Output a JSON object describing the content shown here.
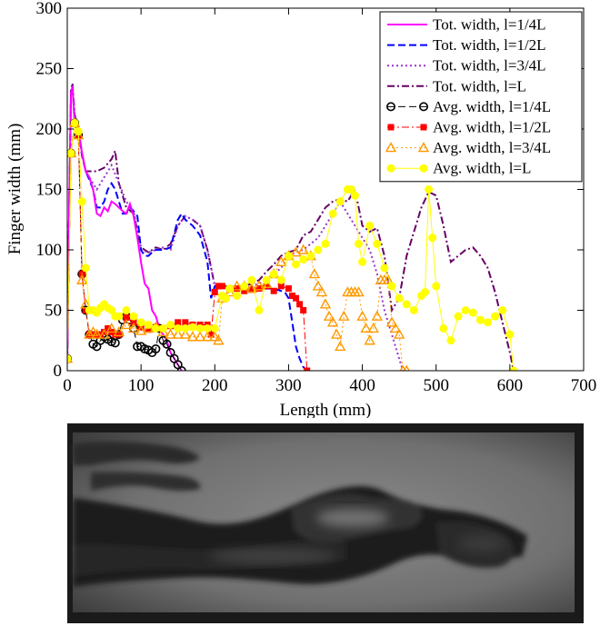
{
  "chart_data": {
    "type": "line",
    "xlabel": "Length (mm)",
    "ylabel": "Finger width (mm)",
    "xlim": [
      0,
      700
    ],
    "ylim": [
      0,
      300
    ],
    "xticks": [
      0,
      100,
      200,
      300,
      400,
      500,
      600,
      700
    ],
    "yticks": [
      0,
      50,
      100,
      150,
      200,
      250,
      300
    ],
    "grid": false,
    "legend": "top-right",
    "series": [
      {
        "name": "Tot. width, l=1/4L",
        "color": "#ff00ff",
        "dash": "solid",
        "marker": "none",
        "x": [
          0,
          3,
          5,
          7,
          10,
          15,
          20,
          25,
          30,
          35,
          40,
          45,
          50,
          55,
          60,
          65,
          70,
          75,
          80,
          85,
          90,
          95,
          100,
          105,
          110,
          115,
          120,
          125,
          130,
          135,
          140,
          145,
          150,
          155
        ],
        "y": [
          10,
          150,
          230,
          235,
          205,
          200,
          180,
          165,
          160,
          150,
          130,
          128,
          135,
          132,
          140,
          138,
          135,
          132,
          130,
          138,
          128,
          110,
          90,
          72,
          68,
          50,
          45,
          35,
          30,
          25,
          15,
          10,
          5,
          0
        ]
      },
      {
        "name": "Tot. width, l=1/2L",
        "color": "#0000ff",
        "dash": "dashed",
        "marker": "none",
        "x": [
          0,
          3,
          5,
          7,
          10,
          15,
          20,
          25,
          30,
          35,
          40,
          45,
          50,
          55,
          60,
          65,
          70,
          75,
          80,
          85,
          90,
          95,
          100,
          105,
          110,
          115,
          120,
          130,
          140,
          150,
          155,
          160,
          170,
          180,
          190,
          195,
          200,
          205,
          210,
          220,
          240,
          260,
          280,
          295,
          300,
          305,
          310,
          315,
          320,
          325
        ],
        "y": [
          10,
          150,
          230,
          235,
          208,
          198,
          178,
          165,
          158,
          150,
          135,
          135,
          140,
          150,
          155,
          150,
          140,
          130,
          130,
          135,
          132,
          128,
          100,
          95,
          95,
          98,
          100,
          100,
          102,
          125,
          130,
          125,
          120,
          112,
          90,
          60,
          70,
          70,
          70,
          68,
          68,
          68,
          68,
          65,
          60,
          40,
          20,
          10,
          3,
          0
        ]
      },
      {
        "name": "Tot. width, l=3/4L",
        "color": "#9933cc",
        "dash": "dotted",
        "marker": "none",
        "x": [
          0,
          3,
          5,
          7,
          10,
          15,
          20,
          25,
          30,
          40,
          50,
          60,
          70,
          80,
          90,
          100,
          110,
          120,
          130,
          140,
          150,
          160,
          170,
          180,
          190,
          200,
          210,
          220,
          230,
          240,
          250,
          260,
          270,
          280,
          290,
          300,
          310,
          320,
          330,
          340,
          350,
          360,
          370,
          380,
          390,
          400,
          410,
          420,
          430,
          440,
          450,
          455
        ],
        "y": [
          10,
          150,
          230,
          236,
          210,
          200,
          180,
          165,
          160,
          150,
          160,
          170,
          155,
          140,
          132,
          100,
          98,
          100,
          102,
          100,
          120,
          128,
          125,
          120,
          100,
          70,
          70,
          68,
          68,
          68,
          70,
          72,
          75,
          80,
          85,
          95,
          98,
          100,
          105,
          110,
          120,
          130,
          140,
          130,
          120,
          110,
          100,
          80,
          50,
          30,
          10,
          0
        ]
      },
      {
        "name": "Tot. width, l=L",
        "color": "#660066",
        "dash": "dashdot",
        "marker": "none",
        "x": [
          0,
          3,
          5,
          7,
          10,
          15,
          20,
          25,
          30,
          40,
          50,
          60,
          65,
          70,
          80,
          90,
          100,
          110,
          120,
          130,
          140,
          150,
          160,
          170,
          180,
          190,
          200,
          210,
          220,
          230,
          240,
          250,
          260,
          270,
          280,
          290,
          300,
          310,
          320,
          330,
          340,
          350,
          360,
          370,
          380,
          390,
          400,
          410,
          420,
          430,
          440,
          450,
          460,
          470,
          480,
          490,
          500,
          510,
          520,
          530,
          540,
          550,
          560,
          570,
          580,
          590,
          600,
          605
        ],
        "y": [
          10,
          150,
          232,
          238,
          212,
          200,
          180,
          165,
          165,
          165,
          168,
          175,
          182,
          155,
          135,
          130,
          102,
          98,
          102,
          100,
          105,
          120,
          128,
          125,
          120,
          100,
          70,
          70,
          70,
          68,
          70,
          72,
          75,
          82,
          88,
          95,
          98,
          100,
          112,
          115,
          125,
          135,
          140,
          142,
          140,
          150,
          120,
          115,
          118,
          95,
          50,
          60,
          95,
          115,
          135,
          148,
          145,
          120,
          90,
          95,
          100,
          102,
          95,
          85,
          65,
          40,
          15,
          0
        ]
      },
      {
        "name": "Avg. width, l=1/4L",
        "color": "#000000",
        "dash": "dashed",
        "marker": "circle-open",
        "x": [
          0,
          5,
          10,
          15,
          20,
          25,
          30,
          35,
          40,
          45,
          50,
          55,
          60,
          65,
          70,
          75,
          80,
          85,
          90,
          95,
          100,
          105,
          110,
          115,
          120,
          125,
          130,
          135,
          140,
          145,
          150,
          155
        ],
        "y": [
          10,
          180,
          205,
          195,
          80,
          50,
          30,
          22,
          20,
          25,
          28,
          26,
          24,
          23,
          30,
          42,
          45,
          42,
          35,
          20,
          20,
          18,
          17,
          15,
          18,
          35,
          25,
          22,
          15,
          10,
          5,
          0
        ]
      },
      {
        "name": "Avg. width, l=1/2L",
        "color": "#ff0000",
        "dash": "dashdot",
        "marker": "square",
        "x": [
          0,
          5,
          10,
          15,
          20,
          25,
          30,
          35,
          40,
          45,
          50,
          55,
          60,
          65,
          70,
          80,
          90,
          100,
          110,
          120,
          130,
          140,
          150,
          160,
          170,
          180,
          190,
          195,
          200,
          205,
          210,
          220,
          230,
          240,
          250,
          260,
          270,
          280,
          290,
          300,
          305,
          310,
          315,
          320,
          325
        ],
        "y": [
          10,
          180,
          205,
          195,
          80,
          50,
          30,
          30,
          30,
          30,
          32,
          35,
          32,
          30,
          30,
          44,
          40,
          36,
          34,
          36,
          35,
          37,
          40,
          40,
          38,
          38,
          38,
          30,
          65,
          70,
          70,
          68,
          68,
          66,
          67,
          68,
          70,
          66,
          70,
          68,
          62,
          60,
          55,
          50,
          0
        ]
      },
      {
        "name": "Avg. width, l=3/4L",
        "color": "#ff9900",
        "dash": "dotted",
        "marker": "triangle",
        "x": [
          0,
          5,
          10,
          15,
          20,
          25,
          30,
          35,
          40,
          50,
          60,
          70,
          80,
          90,
          100,
          110,
          120,
          130,
          140,
          150,
          160,
          170,
          180,
          190,
          200,
          205,
          210,
          220,
          230,
          240,
          250,
          260,
          270,
          280,
          290,
          300,
          310,
          320,
          330,
          335,
          340,
          345,
          350,
          355,
          360,
          365,
          370,
          375,
          380,
          385,
          390,
          395,
          400,
          405,
          410,
          415,
          420,
          425,
          430,
          435,
          440,
          445,
          450,
          455,
          460
        ],
        "y": [
          10,
          180,
          205,
          195,
          75,
          55,
          30,
          32,
          30,
          30,
          35,
          32,
          38,
          35,
          33,
          35,
          36,
          32,
          30,
          30,
          30,
          28,
          28,
          28,
          28,
          25,
          60,
          65,
          70,
          70,
          68,
          70,
          72,
          80,
          90,
          95,
          98,
          100,
          95,
          80,
          70,
          65,
          55,
          45,
          40,
          30,
          20,
          45,
          65,
          65,
          65,
          65,
          45,
          35,
          25,
          35,
          45,
          75,
          75,
          75,
          40,
          35,
          30,
          0,
          0
        ]
      },
      {
        "name": "Avg. width, l=L",
        "color": "#ffff00",
        "dash": "solid",
        "marker": "circle",
        "x": [
          0,
          5,
          10,
          15,
          20,
          25,
          30,
          35,
          40,
          45,
          50,
          55,
          60,
          65,
          70,
          80,
          90,
          100,
          110,
          120,
          130,
          140,
          150,
          160,
          170,
          180,
          190,
          200,
          210,
          215,
          220,
          230,
          240,
          250,
          260,
          270,
          280,
          290,
          300,
          310,
          320,
          330,
          340,
          350,
          360,
          370,
          380,
          385,
          390,
          395,
          400,
          410,
          420,
          430,
          440,
          450,
          460,
          470,
          480,
          485,
          490,
          495,
          500,
          510,
          520,
          530,
          540,
          550,
          560,
          570,
          580,
          590,
          600,
          605
        ],
        "y": [
          10,
          180,
          205,
          198,
          140,
          85,
          50,
          50,
          48,
          52,
          55,
          52,
          50,
          45,
          45,
          50,
          45,
          40,
          38,
          35,
          35,
          38,
          35,
          35,
          36,
          35,
          35,
          35,
          62,
          60,
          68,
          62,
          70,
          75,
          50,
          75,
          80,
          75,
          95,
          88,
          92,
          95,
          100,
          105,
          130,
          140,
          150,
          150,
          145,
          105,
          90,
          120,
          105,
          85,
          70,
          60,
          55,
          50,
          62,
          65,
          150,
          110,
          70,
          35,
          25,
          45,
          50,
          48,
          42,
          40,
          45,
          50,
          30,
          0
        ]
      }
    ]
  },
  "image_panel": {
    "description_free": true
  }
}
